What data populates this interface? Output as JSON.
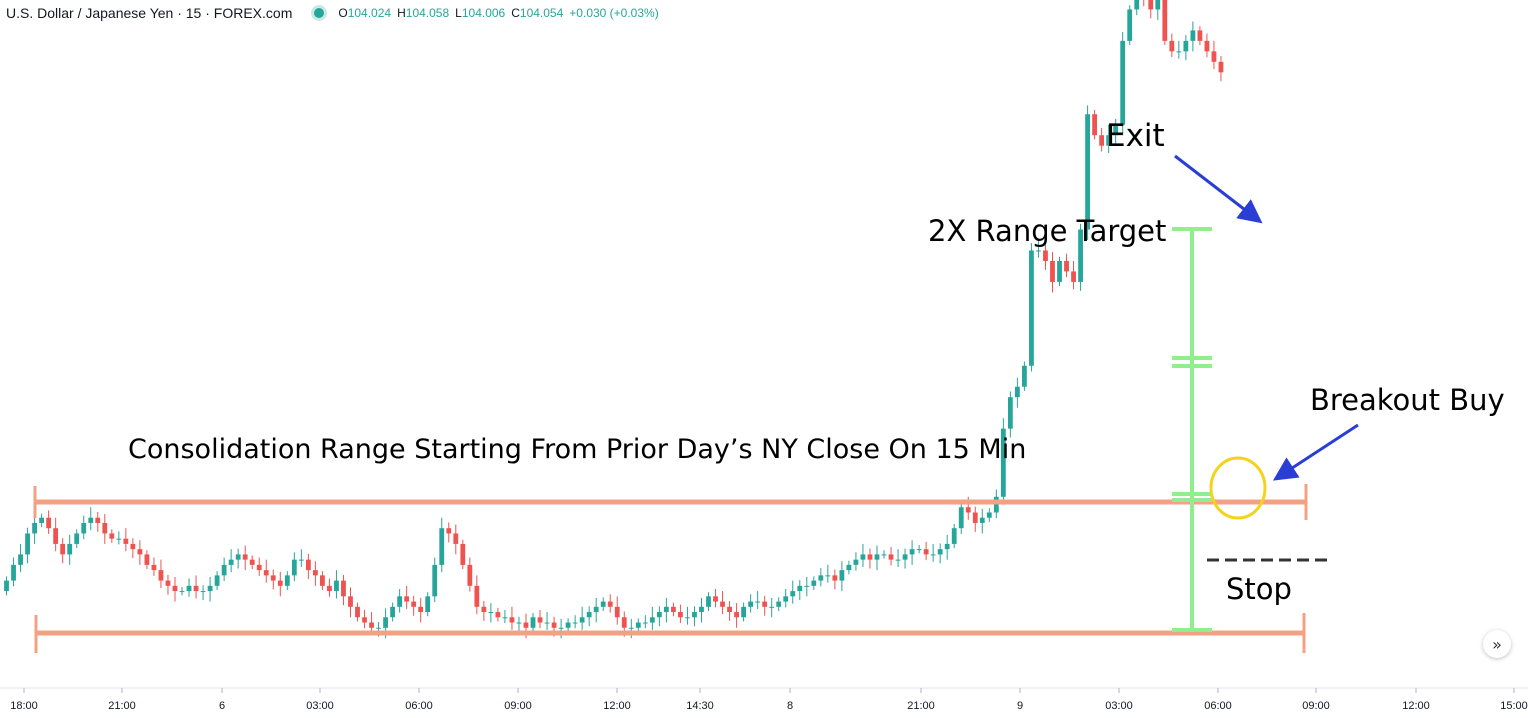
{
  "header": {
    "symbol": "U.S. Dollar / Japanese Yen · 15 · FOREX.com",
    "open_label": "O",
    "open": "104.024",
    "high_label": "H",
    "high": "104.058",
    "low_label": "L",
    "low": "104.006",
    "close_label": "C",
    "close": "104.054",
    "change": "+0.030 (+0.03%)"
  },
  "annotations": {
    "exit": "Exit",
    "target": "2X Range Target",
    "breakout": "Breakout Buy",
    "consolidation": "Consolidation Range Starting From Prior Day’s NY Close On 15 Min",
    "stop": "Stop"
  },
  "scroll_button": "»",
  "colors": {
    "up": "#26a69a",
    "down": "#ef5350",
    "range_lines": "#f4a183",
    "target_bar": "#90ee90",
    "breakout_circle": "#f5d31a",
    "arrows": "#2a3ed6",
    "stop_line": "#333333"
  },
  "chart_data": {
    "type": "candlestick",
    "symbol": "USD/JPY",
    "timeframe": "15",
    "x_ticks": [
      "18:00",
      "21:00",
      "6",
      "03:00",
      "06:00",
      "09:00",
      "12:00",
      "14:30",
      "8",
      "21:00",
      "9",
      "03:00",
      "06:00",
      "09:00",
      "12:00",
      "15:00"
    ],
    "ylim": [
      103.8,
      104.9
    ],
    "consolidation_range": {
      "high": 104.01,
      "low": 103.885
    },
    "target": 104.26,
    "stop": 103.975,
    "closes": [
      103.935,
      103.95,
      103.96,
      103.98,
      103.99,
      103.995,
      103.985,
      103.97,
      103.96,
      103.97,
      103.98,
      103.99,
      103.995,
      103.99,
      103.98,
      103.975,
      103.975,
      103.97,
      103.965,
      103.96,
      103.95,
      103.945,
      103.935,
      103.93,
      103.925,
      103.925,
      103.93,
      103.925,
      103.925,
      103.93,
      103.94,
      103.95,
      103.955,
      103.96,
      103.955,
      103.95,
      103.945,
      103.94,
      103.935,
      103.93,
      103.94,
      103.955,
      103.955,
      103.945,
      103.94,
      103.93,
      103.925,
      103.935,
      103.92,
      103.91,
      103.9,
      103.895,
      103.89,
      103.89,
      103.9,
      103.91,
      103.92,
      103.915,
      103.91,
      103.905,
      103.92,
      103.95,
      103.985,
      103.98,
      103.97,
      103.95,
      103.93,
      103.91,
      103.905,
      103.905,
      103.9,
      103.9,
      103.895,
      103.895,
      103.89,
      103.9,
      103.895,
      103.895,
      103.89,
      103.89,
      103.895,
      103.895,
      103.9,
      103.905,
      103.91,
      103.915,
      103.91,
      103.9,
      103.89,
      103.89,
      103.895,
      103.895,
      103.9,
      103.905,
      103.91,
      103.905,
      103.9,
      103.9,
      103.905,
      103.91,
      103.92,
      103.915,
      103.91,
      103.905,
      103.9,
      103.91,
      103.915,
      103.915,
      103.91,
      103.91,
      103.915,
      103.92,
      103.925,
      103.93,
      103.93,
      103.935,
      103.94,
      103.94,
      103.935,
      103.945,
      103.95,
      103.955,
      103.96,
      103.955,
      103.96,
      103.96,
      103.955,
      103.955,
      103.96,
      103.965,
      103.965,
      103.96,
      103.96,
      103.965,
      103.97,
      103.985,
      104.005,
      104.0,
      103.99,
      103.995,
      104.0,
      104.015,
      104.08,
      104.11,
      104.12,
      104.14,
      104.25,
      104.25,
      104.24,
      104.22,
      104.24,
      104.23,
      104.22,
      104.27,
      104.38,
      104.36,
      104.35,
      104.36,
      104.37,
      104.45,
      104.48,
      104.5,
      104.49,
      104.48,
      104.49,
      104.45,
      104.44,
      104.44,
      104.45,
      104.46,
      104.45,
      104.44,
      104.43,
      104.42
    ]
  }
}
